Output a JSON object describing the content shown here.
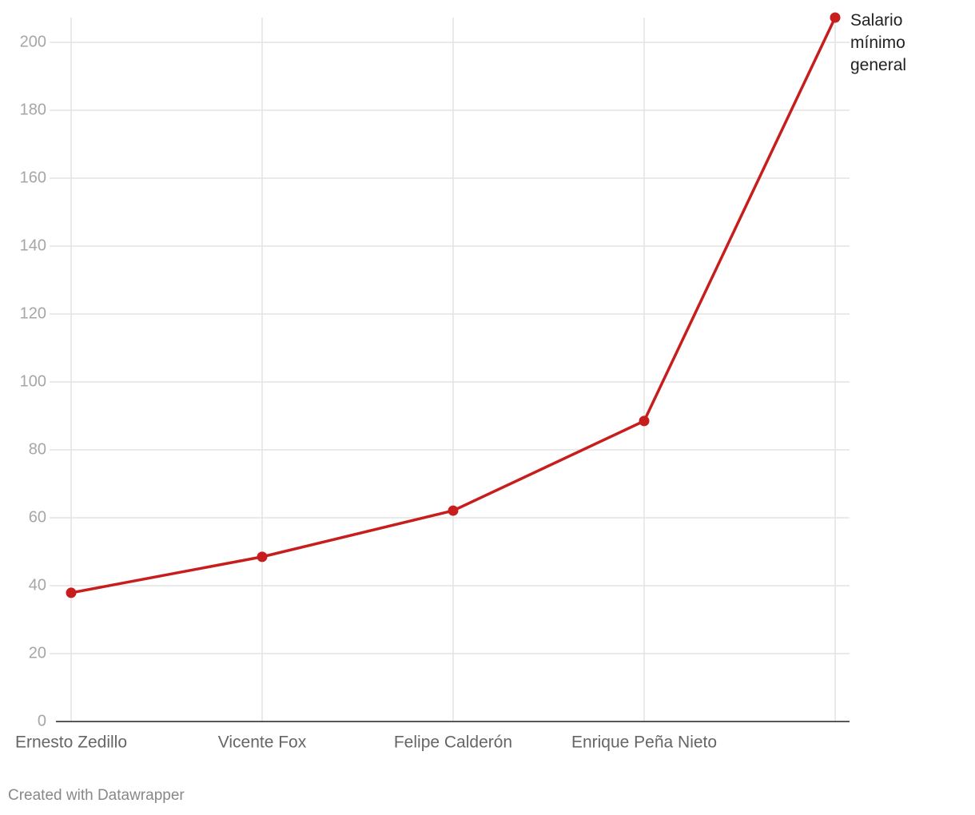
{
  "chart_data": {
    "type": "line",
    "categories": [
      "Ernesto Zedillo",
      "Vicente Fox",
      "Felipe Calderón",
      "Enrique Peña Nieto",
      null
    ],
    "series": [
      {
        "name": "Salario mínimo general",
        "color": "#c71e1d",
        "values": [
          37.9,
          48.5,
          62.1,
          88.5,
          207.3
        ]
      }
    ],
    "ylim": [
      0,
      208
    ],
    "yticks": [
      0,
      20,
      40,
      60,
      80,
      100,
      120,
      140,
      160,
      180,
      200
    ],
    "grid": true,
    "credit": "Created with Datawrapper"
  }
}
